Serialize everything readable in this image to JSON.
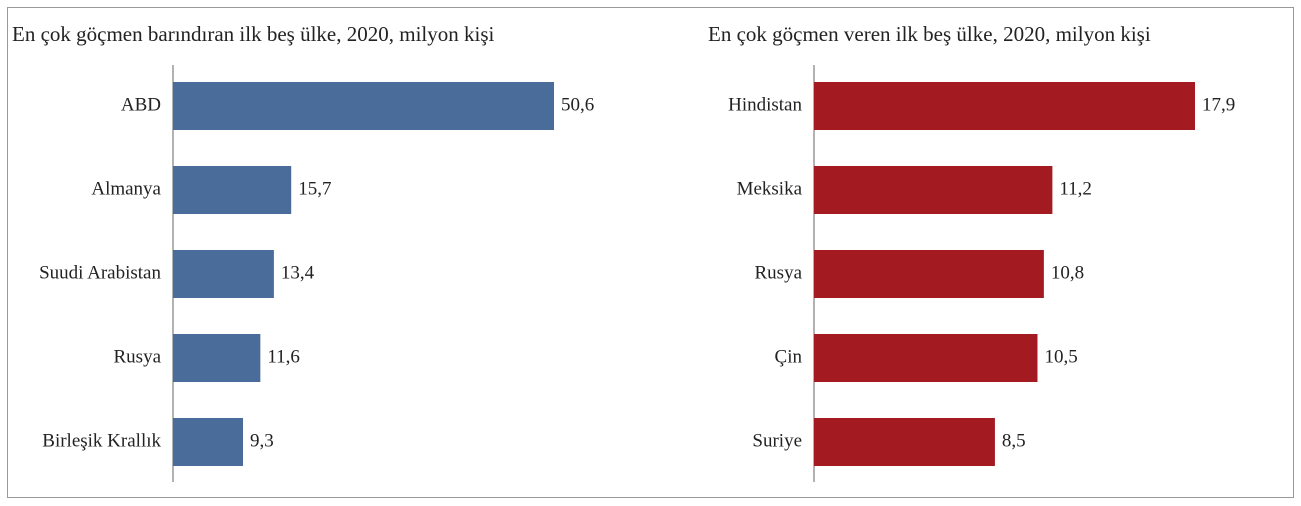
{
  "chart_data": [
    {
      "type": "barh",
      "title": "En çok göçmen barındıran ilk beş ülke, 2020, milyon kişi",
      "categories": [
        "ABD",
        "Almanya",
        "Suudi Arabistan",
        "Rusya",
        "Birleşik Krallık"
      ],
      "values": [
        50.6,
        15.7,
        13.4,
        11.6,
        9.3
      ],
      "value_labels": [
        "50,6",
        "15,7",
        "13,4",
        "11,6",
        "9,3"
      ],
      "color": "#4a6c9b"
    },
    {
      "type": "barh",
      "title": "En çok göçmen veren ilk beş ülke, 2020, milyon kişi",
      "categories": [
        "Hindistan",
        "Meksika",
        "Rusya",
        "Çin",
        "Suriye"
      ],
      "values": [
        17.9,
        11.2,
        10.8,
        10.5,
        8.5
      ],
      "value_labels": [
        "17,9",
        "11,2",
        "10,8",
        "10,5",
        "8,5"
      ],
      "color": "#a31b21"
    }
  ]
}
